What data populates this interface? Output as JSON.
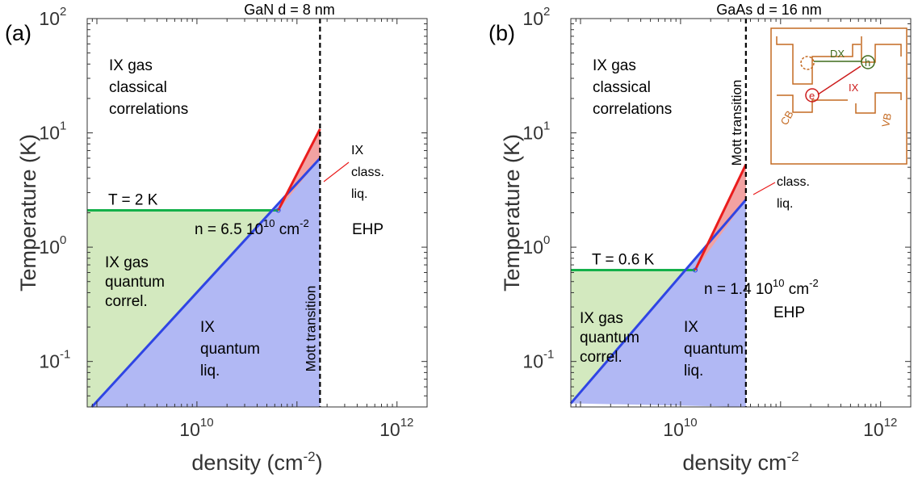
{
  "colors": {
    "gas_quantum": "#d3e9bf",
    "quantum_liquid": "#b1b8f4",
    "classical_liquid": "#f2a2a2",
    "green_line": "#14b04a",
    "blue_line": "#2f45e4",
    "red_line": "#ea1c1c",
    "axis": "#333333",
    "inset": "#c46a22",
    "inset_dx": "#3f6b1c",
    "inset_ix": "#cc1b1b"
  },
  "panels": [
    {
      "panel_label": "(a)",
      "title": "GaN  d = 8 nm",
      "xlabel_main": "density (cm",
      "xlabel_sup": "-2",
      "xlabel_tail": ")",
      "ylabel": "Temperature (K)",
      "ytick_labels": [
        {
          "base": "10",
          "exp": "2"
        },
        {
          "base": "10",
          "exp": "1"
        },
        {
          "base": "10",
          "exp": "0"
        },
        {
          "base": "10",
          "exp": "-1"
        }
      ],
      "xtick_labels": [
        {
          "base": "10",
          "exp": "10"
        },
        {
          "base": "10",
          "exp": "12"
        }
      ],
      "temp_line_label": "T = 2 K",
      "crossing_label_main": "n = 6.5 10",
      "crossing_label_sup1": "10",
      "crossing_label_mid": " cm",
      "crossing_label_sup2": "-2",
      "mott_label": "Mott transition",
      "ehp_label": "EHP",
      "region_labels": {
        "gas_classical": [
          "IX gas",
          "classical",
          "correlations"
        ],
        "gas_quantum": [
          "IX gas",
          "quantum",
          "correl."
        ],
        "quantum_liquid": [
          "IX",
          "quantum",
          "liq."
        ],
        "classical_liquid": [
          "IX",
          "class.",
          "liq."
        ]
      }
    },
    {
      "panel_label": "(b)",
      "title": "GaAs  d = 16 nm",
      "xlabel_main": "density cm",
      "xlabel_sup": "-2",
      "xlabel_tail": "",
      "ylabel": "Temperature (K)",
      "ytick_labels": [
        {
          "base": "10",
          "exp": "2"
        },
        {
          "base": "10",
          "exp": "1"
        },
        {
          "base": "10",
          "exp": "0"
        },
        {
          "base": "10",
          "exp": "-1"
        }
      ],
      "xtick_labels": [
        {
          "base": "10",
          "exp": "10"
        },
        {
          "base": "10",
          "exp": "12"
        }
      ],
      "temp_line_label": "T = 0.6 K",
      "crossing_label_main": "n = 1.4 10",
      "crossing_label_sup1": "10",
      "crossing_label_mid": " cm",
      "crossing_label_sup2": "-2",
      "mott_label": "Mott transition",
      "ehp_label": "EHP",
      "region_labels": {
        "gas_classical": [
          "IX gas",
          "classical",
          "correlations"
        ],
        "gas_quantum": [
          "IX gas",
          "quantum",
          "correl."
        ],
        "quantum_liquid": [
          "IX",
          "quantum",
          "liq."
        ],
        "classical_liquid": [
          "IX",
          "class.",
          "liq."
        ]
      },
      "inset": {
        "dx": "DX",
        "ix": "IX",
        "e": "e",
        "h": "h",
        "cb": "CB",
        "vb": "VB"
      }
    }
  ],
  "chart_data": [
    {
      "type": "area",
      "title": "GaN  d = 8 nm",
      "xlabel": "density (cm-2)",
      "ylabel": "Temperature (K)",
      "xscale": "log",
      "yscale": "log",
      "xlim": [
        800000000.0,
        2000000000000.0
      ],
      "ylim": [
        0.04,
        100
      ],
      "grid": false,
      "temperature_line": {
        "label": "T = 2 K",
        "T": 2.1,
        "n_end": 65000000000.0
      },
      "crossing_point": {
        "n": 65000000000.0,
        "T": 2.1
      },
      "mott_density": 170000000000.0,
      "series": [
        {
          "name": "IX quantum liq. boundary",
          "x": [
            890000000.0,
            170000000000.0
          ],
          "y": [
            0.04,
            6.0
          ]
        },
        {
          "name": "IX class. liq. boundary",
          "x": [
            65000000000.0,
            170000000000.0
          ],
          "y": [
            2.1,
            10.8
          ]
        }
      ]
    },
    {
      "type": "area",
      "title": "GaAs  d = 16 nm",
      "xlabel": "density cm-2",
      "ylabel": "Temperature (K)",
      "xscale": "log",
      "yscale": "log",
      "xlim": [
        800000000.0,
        2000000000000.0
      ],
      "ylim": [
        0.04,
        100
      ],
      "grid": false,
      "temperature_line": {
        "label": "T = 0.6 K",
        "T": 0.63,
        "n_end": 14000000000.0
      },
      "crossing_point": {
        "n": 14000000000.0,
        "T": 0.63
      },
      "mott_density": 45000000000.0,
      "series": [
        {
          "name": "IX quantum liq. boundary",
          "x": [
            800000000.0,
            45000000000.0
          ],
          "y": [
            0.043,
            2.6
          ]
        },
        {
          "name": "IX class. liq. boundary",
          "x": [
            14000000000.0,
            45000000000.0
          ],
          "y": [
            0.63,
            5.3
          ]
        }
      ]
    }
  ]
}
